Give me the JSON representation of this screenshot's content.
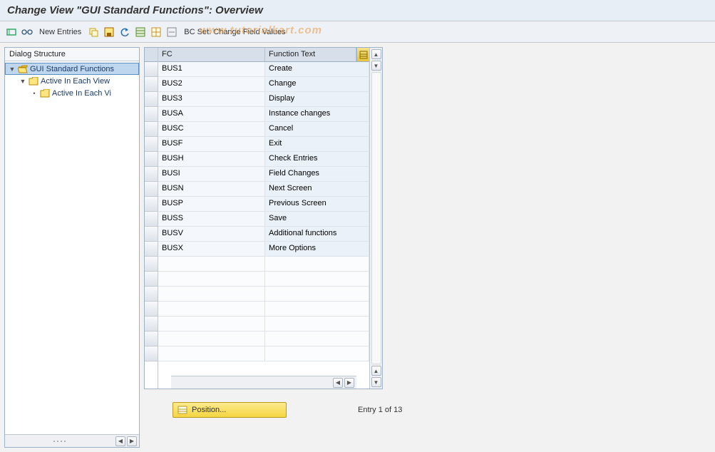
{
  "title": "Change View \"GUI Standard Functions\": Overview",
  "toolbar": {
    "new_entries": "New Entries",
    "bc_set": "BC Set: Change Field Values"
  },
  "watermark": "www.tutorialkart.com",
  "tree": {
    "header": "Dialog Structure",
    "nodes": [
      {
        "label": "GUI Standard Functions",
        "indent": 0,
        "toggle": "▼",
        "selected": true,
        "open": true
      },
      {
        "label": "Active In Each View",
        "indent": 1,
        "toggle": "▼",
        "selected": false,
        "open": false
      },
      {
        "label": "Active In Each Vi",
        "indent": 2,
        "toggle": "•",
        "selected": false,
        "open": false
      }
    ]
  },
  "table": {
    "columns": {
      "fc": "FC",
      "ft": "Function Text"
    },
    "rows": [
      {
        "fc": "BUS1",
        "ft": "Create"
      },
      {
        "fc": "BUS2",
        "ft": "Change"
      },
      {
        "fc": "BUS3",
        "ft": "Display"
      },
      {
        "fc": "BUSA",
        "ft": "Instance changes"
      },
      {
        "fc": "BUSC",
        "ft": "Cancel"
      },
      {
        "fc": "BUSF",
        "ft": "Exit"
      },
      {
        "fc": "BUSH",
        "ft": "Check Entries"
      },
      {
        "fc": "BUSI",
        "ft": "Field Changes"
      },
      {
        "fc": "BUSN",
        "ft": "Next Screen"
      },
      {
        "fc": "BUSP",
        "ft": "Previous Screen"
      },
      {
        "fc": "BUSS",
        "ft": "Save"
      },
      {
        "fc": "BUSV",
        "ft": "Additional functions"
      },
      {
        "fc": "BUSX",
        "ft": "More Options"
      }
    ],
    "empty_rows": 7
  },
  "footer": {
    "position_label": "Position...",
    "entry_text": "Entry 1 of 13"
  },
  "colors": {
    "header_bg": "#e8eef5",
    "panel_border": "#9db2c8",
    "sel_bg": "#bfd6ef",
    "btn_yellow_top": "#fceb8f",
    "btn_yellow_bot": "#f5d540"
  }
}
